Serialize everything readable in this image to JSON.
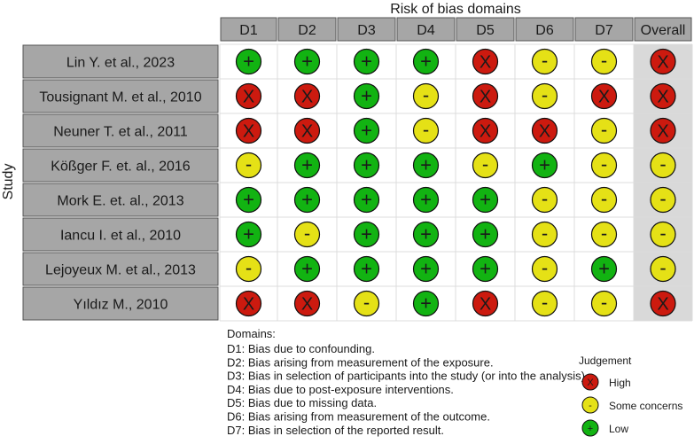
{
  "chart_data": {
    "type": "table",
    "title": "Risk of bias domains",
    "ylabel": "Study",
    "columns": [
      "D1",
      "D2",
      "D3",
      "D4",
      "D5",
      "D6",
      "D7",
      "Overall"
    ],
    "studies": [
      "Lin Y. et al., 2023",
      "Tousignant M. et al., 2010",
      "Neuner T. et al., 2011",
      "Kößger F. et. al., 2016",
      "Mork E. et. al., 2013",
      "Iancu I. et al., 2010",
      "Lejoyeux M. et al., 2013",
      "Yıldız M., 2010"
    ],
    "judgements": [
      [
        "low",
        "low",
        "low",
        "low",
        "high",
        "some",
        "some",
        "high"
      ],
      [
        "high",
        "high",
        "low",
        "some",
        "high",
        "some",
        "high",
        "high"
      ],
      [
        "high",
        "high",
        "low",
        "some",
        "high",
        "high",
        "some",
        "high"
      ],
      [
        "some",
        "low",
        "low",
        "low",
        "some",
        "low",
        "some",
        "some"
      ],
      [
        "low",
        "low",
        "low",
        "low",
        "low",
        "some",
        "some",
        "some"
      ],
      [
        "low",
        "some",
        "low",
        "low",
        "low",
        "some",
        "some",
        "some"
      ],
      [
        "some",
        "low",
        "low",
        "low",
        "low",
        "some",
        "low",
        "some"
      ],
      [
        "high",
        "high",
        "some",
        "low",
        "high",
        "some",
        "some",
        "high"
      ]
    ],
    "symbols": {
      "high": "X",
      "some": "-",
      "low": "+"
    },
    "colors": {
      "high": "#cc1a0f",
      "some": "#e5e116",
      "low": "#12b312",
      "header": "#a6a6a6",
      "overall_bg": "#d9d9d9"
    },
    "domains_title": "Domains:",
    "domains": [
      "D1: Bias due to confounding.",
      "D2: Bias arising from measurement of the exposure.",
      "D3: Bias in selection of participants into the study (or into the analysis).",
      "D4: Bias due to post-exposure interventions.",
      "D5: Bias due to missing data.",
      "D6: Bias arising from measurement of the outcome.",
      "D7: Bias in selection of the reported result."
    ],
    "legend_title": "Judgement",
    "legend": [
      {
        "key": "high",
        "label": "High"
      },
      {
        "key": "some",
        "label": "Some concerns"
      },
      {
        "key": "low",
        "label": "Low"
      }
    ]
  }
}
